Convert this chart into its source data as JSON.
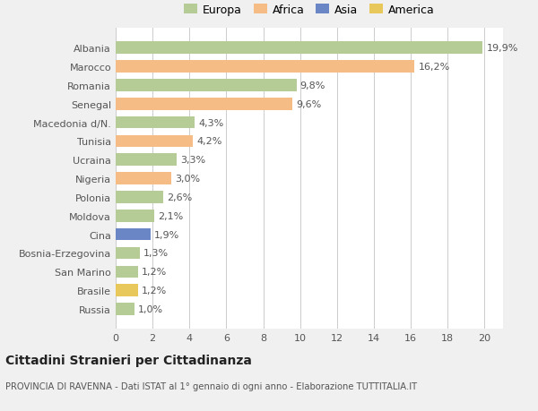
{
  "categories": [
    "Albania",
    "Marocco",
    "Romania",
    "Senegal",
    "Macedonia d/N.",
    "Tunisia",
    "Ucraina",
    "Nigeria",
    "Polonia",
    "Moldova",
    "Cina",
    "Bosnia-Erzegovina",
    "San Marino",
    "Brasile",
    "Russia"
  ],
  "values": [
    19.9,
    16.2,
    9.8,
    9.6,
    4.3,
    4.2,
    3.3,
    3.0,
    2.6,
    2.1,
    1.9,
    1.3,
    1.2,
    1.2,
    1.0
  ],
  "labels": [
    "19,9%",
    "16,2%",
    "9,8%",
    "9,6%",
    "4,3%",
    "4,2%",
    "3,3%",
    "3,0%",
    "2,6%",
    "2,1%",
    "1,9%",
    "1,3%",
    "1,2%",
    "1,2%",
    "1,0%"
  ],
  "colors": [
    "#b5cc96",
    "#f5bc86",
    "#b5cc96",
    "#f5bc86",
    "#b5cc96",
    "#f5bc86",
    "#b5cc96",
    "#f5bc86",
    "#b5cc96",
    "#b5cc96",
    "#6b86c4",
    "#b5cc96",
    "#b5cc96",
    "#e8c85a",
    "#b5cc96"
  ],
  "legend_labels": [
    "Europa",
    "Africa",
    "Asia",
    "America"
  ],
  "legend_colors": [
    "#b5cc96",
    "#f5bc86",
    "#6b86c4",
    "#e8c85a"
  ],
  "title": "Cittadini Stranieri per Cittadinanza",
  "subtitle": "PROVINCIA DI RAVENNA - Dati ISTAT al 1° gennaio di ogni anno - Elaborazione TUTTITALIA.IT",
  "xlim": [
    0,
    21
  ],
  "xticks": [
    0,
    2,
    4,
    6,
    8,
    10,
    12,
    14,
    16,
    18,
    20
  ],
  "background_color": "#f0f0f0",
  "plot_bg_color": "#ffffff"
}
